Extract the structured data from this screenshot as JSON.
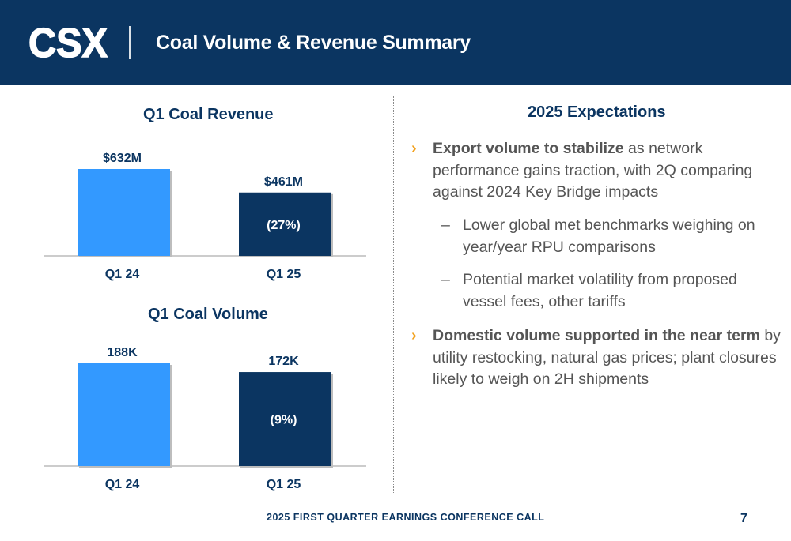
{
  "header": {
    "logo_text": "CSX",
    "title": "Coal Volume & Revenue Summary"
  },
  "colors": {
    "header_bg": "#0b3561",
    "bar_prior": "#3399ff",
    "bar_current": "#0b3561",
    "chevron": "#f2a01b"
  },
  "chart_data": [
    {
      "type": "bar",
      "title": "Q1 Coal Revenue",
      "categories": [
        "Q1 24",
        "Q1 25"
      ],
      "values": [
        632,
        461
      ],
      "value_labels": [
        "$632M",
        "$461M"
      ],
      "change_label": "(27%)",
      "unit": "$M"
    },
    {
      "type": "bar",
      "title": "Q1 Coal Volume",
      "categories": [
        "Q1 24",
        "Q1 25"
      ],
      "values": [
        188,
        172
      ],
      "value_labels": [
        "188K",
        "172K"
      ],
      "change_label": "(9%)",
      "unit": "K"
    }
  ],
  "expectations": {
    "title": "2025 Expectations",
    "bullet1_bold": "Export volume to stabilize",
    "bullet1_rest": " as network performance gains traction, with 2Q comparing against 2024 Key Bridge impacts",
    "sub1": "Lower global met benchmarks weighing on year/year RPU comparisons",
    "sub2": "Potential market volatility from proposed vessel fees, other tariffs",
    "bullet2_bold": "Domestic volume supported in the near term",
    "bullet2_rest": " by utility restocking, natural gas prices; plant closures likely to weigh on 2H shipments",
    "chevron_glyph": "›",
    "dash_glyph": "–"
  },
  "footer": {
    "text": "2025 FIRST QUARTER EARNINGS CONFERENCE CALL",
    "page": "7"
  }
}
